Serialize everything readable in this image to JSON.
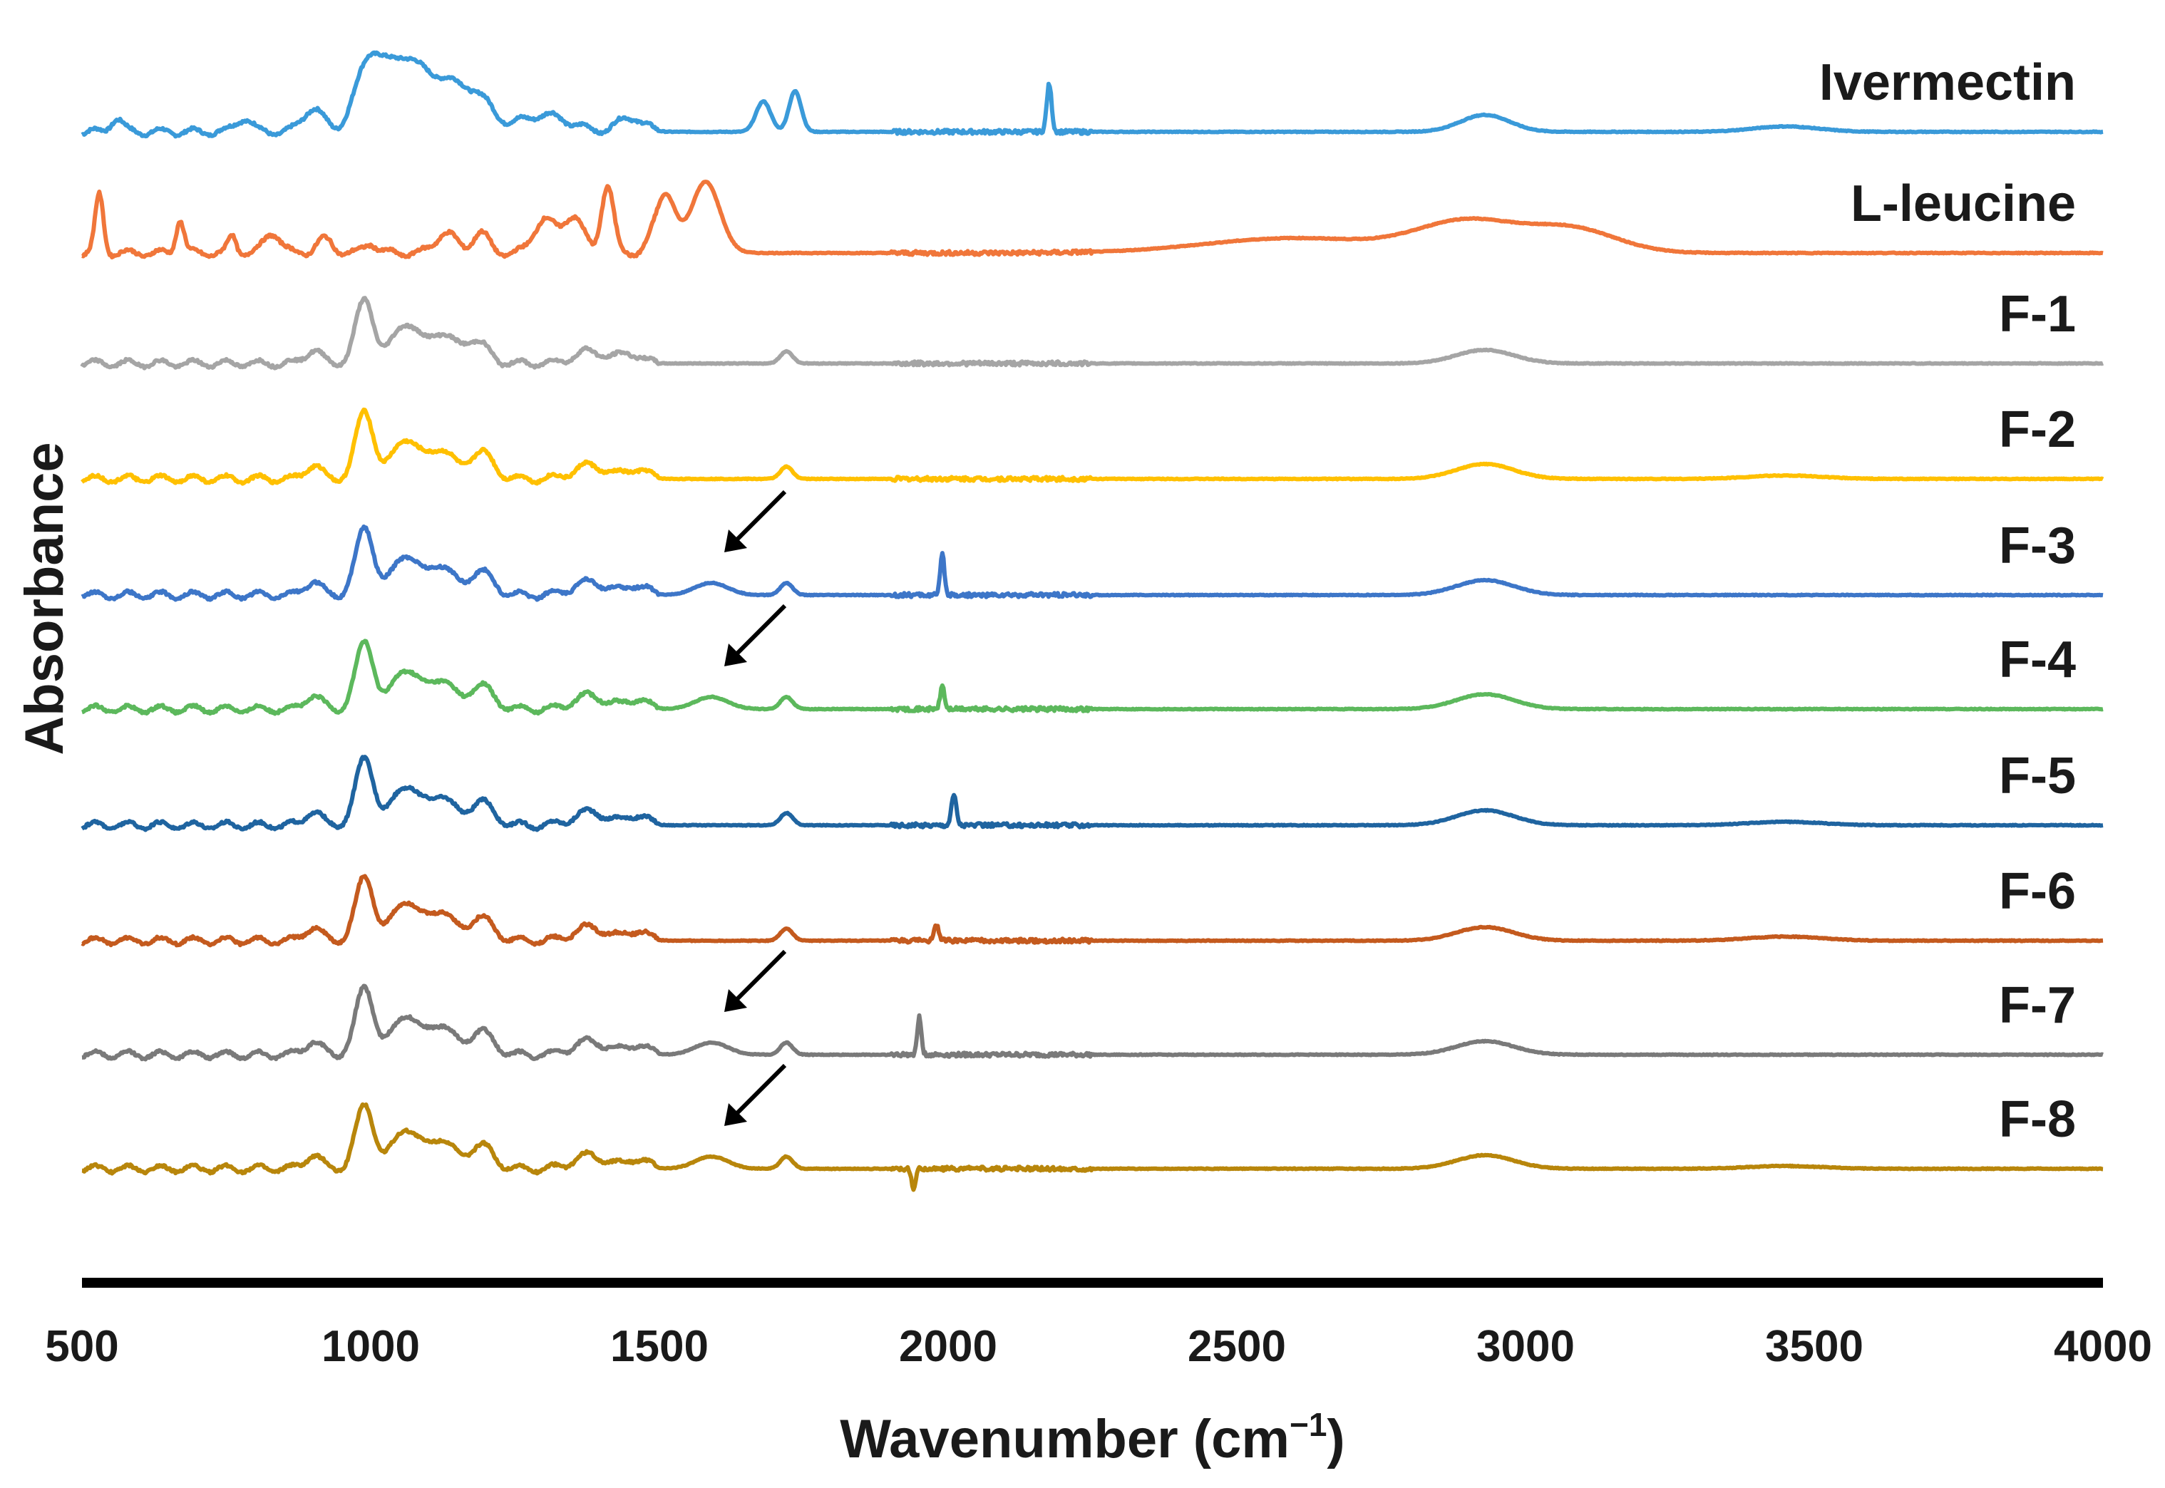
{
  "chart_data": {
    "type": "line",
    "title": "",
    "xlabel": "Wavenumber (cm",
    "xlabel_superscript": "−1",
    "xlabel_close": ")",
    "ylabel": "Absorbance",
    "xlim": [
      500,
      4000
    ],
    "x_ticks": [
      500,
      1000,
      1500,
      2000,
      2500,
      3000,
      3500,
      4000
    ],
    "y_ticks": "none (stacked, offset spectra)",
    "grid": false,
    "legend": "labels at right end of each trace",
    "annotations": [
      {
        "type": "arrow",
        "series": "F-3",
        "points_to_wavenumber": 1600
      },
      {
        "type": "arrow",
        "series": "F-4",
        "points_to_wavenumber": 1600
      },
      {
        "type": "arrow",
        "series": "F-7",
        "points_to_wavenumber": 1600
      },
      {
        "type": "arrow",
        "series": "F-8",
        "points_to_wavenumber": 1600
      }
    ],
    "series": [
      {
        "name": "Ivermectin",
        "color": "#3a9ad9",
        "offset": 9,
        "profile": "ivermectin",
        "baseline_end": 0.0,
        "peaks": [
          [
            1000,
            1.1,
            35
          ],
          [
            1060,
            1.0,
            38
          ],
          [
            1120,
            0.7,
            40
          ],
          [
            1180,
            0.55,
            40
          ],
          [
            900,
            0.35,
            25
          ],
          [
            780,
            0.2,
            20
          ],
          [
            560,
            0.2,
            15
          ],
          [
            1300,
            0.25,
            60
          ],
          [
            1450,
            0.22,
            30
          ],
          [
            1680,
            0.45,
            18
          ],
          [
            1735,
            0.6,
            15
          ],
          [
            2175,
            0.7,
            6
          ],
          [
            2930,
            0.25,
            60
          ],
          [
            3450,
            0.08,
            80
          ]
        ]
      },
      {
        "name": "L-leucine",
        "color": "#f0763a",
        "offset": 8,
        "profile": "leucine",
        "baseline_end": 0.0,
        "peaks": [
          [
            530,
            0.85,
            10
          ],
          [
            670,
            0.5,
            10
          ],
          [
            760,
            0.25,
            10
          ],
          [
            830,
            0.3,
            20
          ],
          [
            920,
            0.2,
            20
          ],
          [
            1000,
            0.15,
            15
          ],
          [
            1130,
            0.3,
            25
          ],
          [
            1190,
            0.3,
            20
          ],
          [
            1300,
            0.5,
            25
          ],
          [
            1350,
            0.55,
            25
          ],
          [
            1410,
            1.0,
            15
          ],
          [
            1510,
            0.85,
            25
          ],
          [
            1580,
            1.05,
            35
          ],
          [
            2600,
            0.22,
            220
          ],
          [
            2900,
            0.45,
            120
          ],
          [
            3080,
            0.35,
            110
          ]
        ]
      },
      {
        "name": "F-1",
        "color": "#a5a5a5",
        "offset": 7,
        "profile": "formulation",
        "baseline_end": 0.0,
        "peaks": [
          [
            990,
            0.95,
            22
          ],
          [
            1060,
            0.6,
            30
          ],
          [
            1120,
            0.45,
            30
          ],
          [
            1180,
            0.35,
            30
          ],
          [
            900,
            0.2,
            20
          ],
          [
            1380,
            0.18,
            40
          ],
          [
            1450,
            0.15,
            25
          ],
          [
            1720,
            0.18,
            15
          ],
          [
            2930,
            0.2,
            70
          ]
        ]
      },
      {
        "name": "F-2",
        "color": "#ffc000",
        "offset": 6,
        "profile": "formulation",
        "baseline_end": 0.0,
        "peaks": [
          [
            990,
            1.0,
            22
          ],
          [
            1060,
            0.6,
            30
          ],
          [
            1120,
            0.45,
            30
          ],
          [
            1190,
            0.4,
            30
          ],
          [
            900,
            0.2,
            20
          ],
          [
            1380,
            0.2,
            40
          ],
          [
            1460,
            0.15,
            25
          ],
          [
            1720,
            0.18,
            15
          ],
          [
            2930,
            0.22,
            70
          ],
          [
            3450,
            0.05,
            90
          ]
        ]
      },
      {
        "name": "F-3",
        "color": "#3d76c8",
        "offset": 5,
        "profile": "formulation",
        "baseline_end": 0.0,
        "peaks": [
          [
            990,
            1.0,
            22
          ],
          [
            1060,
            0.6,
            30
          ],
          [
            1120,
            0.45,
            30
          ],
          [
            1190,
            0.35,
            30
          ],
          [
            900,
            0.2,
            20
          ],
          [
            1380,
            0.2,
            40
          ],
          [
            1460,
            0.15,
            25
          ],
          [
            1590,
            0.18,
            40
          ],
          [
            1720,
            0.18,
            15
          ],
          [
            1990,
            0.6,
            5
          ],
          [
            2930,
            0.22,
            70
          ]
        ]
      },
      {
        "name": "F-4",
        "color": "#5cb85c",
        "offset": 4,
        "profile": "formulation",
        "baseline_end": 0.0,
        "peaks": [
          [
            990,
            1.0,
            22
          ],
          [
            1060,
            0.6,
            30
          ],
          [
            1120,
            0.45,
            30
          ],
          [
            1190,
            0.35,
            30
          ],
          [
            900,
            0.2,
            20
          ],
          [
            1380,
            0.2,
            40
          ],
          [
            1460,
            0.15,
            25
          ],
          [
            1590,
            0.18,
            40
          ],
          [
            1720,
            0.18,
            15
          ],
          [
            1990,
            0.35,
            5
          ],
          [
            2930,
            0.22,
            70
          ]
        ]
      },
      {
        "name": "F-5",
        "color": "#1f64a0",
        "offset": 3,
        "profile": "formulation",
        "baseline_end": 0.0,
        "peaks": [
          [
            990,
            1.0,
            22
          ],
          [
            1060,
            0.6,
            30
          ],
          [
            1120,
            0.45,
            30
          ],
          [
            1190,
            0.35,
            30
          ],
          [
            900,
            0.2,
            20
          ],
          [
            1380,
            0.2,
            40
          ],
          [
            1460,
            0.15,
            25
          ],
          [
            1720,
            0.18,
            15
          ],
          [
            2010,
            0.45,
            6
          ],
          [
            2930,
            0.22,
            70
          ],
          [
            3450,
            0.05,
            90
          ]
        ]
      },
      {
        "name": "F-6",
        "color": "#c45a1e",
        "offset": 2,
        "profile": "formulation",
        "baseline_end": 0.0,
        "peaks": [
          [
            990,
            0.95,
            22
          ],
          [
            1060,
            0.6,
            30
          ],
          [
            1120,
            0.45,
            30
          ],
          [
            1190,
            0.35,
            30
          ],
          [
            900,
            0.2,
            20
          ],
          [
            1380,
            0.2,
            40
          ],
          [
            1460,
            0.15,
            25
          ],
          [
            1720,
            0.18,
            15
          ],
          [
            1980,
            0.22,
            6
          ],
          [
            2930,
            0.2,
            70
          ],
          [
            3450,
            0.06,
            90
          ]
        ]
      },
      {
        "name": "F-7",
        "color": "#7a7a7a",
        "offset": 1,
        "profile": "formulation",
        "baseline_end": 0.0,
        "peaks": [
          [
            990,
            1.0,
            22
          ],
          [
            1060,
            0.6,
            30
          ],
          [
            1120,
            0.45,
            30
          ],
          [
            1190,
            0.35,
            30
          ],
          [
            900,
            0.2,
            20
          ],
          [
            1380,
            0.2,
            40
          ],
          [
            1460,
            0.15,
            25
          ],
          [
            1590,
            0.18,
            40
          ],
          [
            1720,
            0.18,
            15
          ],
          [
            1950,
            0.55,
            5
          ],
          [
            2930,
            0.2,
            70
          ]
        ]
      },
      {
        "name": "F-8",
        "color": "#b8860b",
        "offset": 0,
        "profile": "formulation",
        "baseline_end": 0.0,
        "peaks": [
          [
            990,
            0.95,
            22
          ],
          [
            1060,
            0.6,
            30
          ],
          [
            1120,
            0.45,
            30
          ],
          [
            1190,
            0.35,
            30
          ],
          [
            900,
            0.2,
            20
          ],
          [
            1380,
            0.2,
            40
          ],
          [
            1460,
            0.15,
            25
          ],
          [
            1590,
            0.18,
            40
          ],
          [
            1720,
            0.18,
            15
          ],
          [
            1940,
            -0.3,
            5
          ],
          [
            2930,
            0.2,
            70
          ],
          [
            3450,
            0.04,
            90
          ]
        ]
      }
    ]
  }
}
